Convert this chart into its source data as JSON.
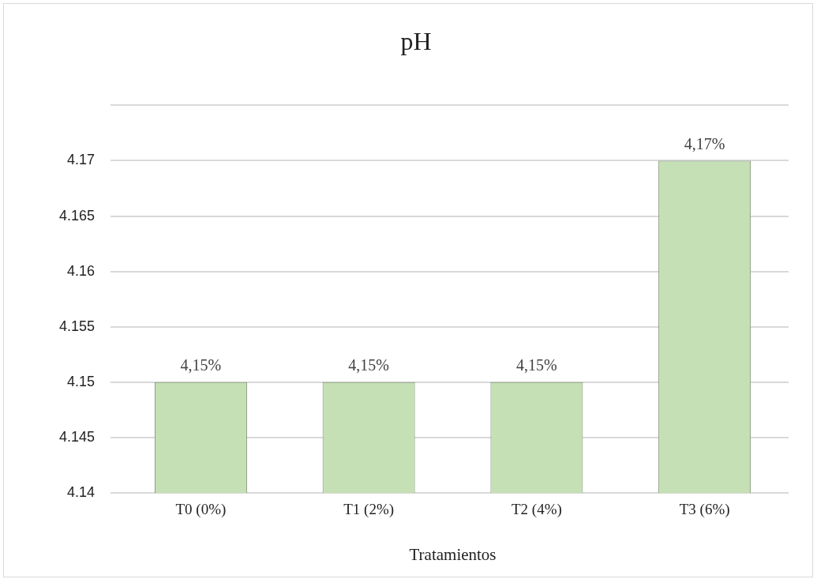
{
  "chart_data": {
    "type": "bar",
    "title": "pH",
    "xlabel": "Tratamientos",
    "categories": [
      "T0 (0%)",
      "T1 (2%)",
      "T2 (4%)",
      "T3 (6%)"
    ],
    "values": [
      4.15,
      4.15,
      4.15,
      4.17
    ],
    "value_labels": [
      "4,15%",
      "4,15%",
      "4,15%",
      "4,17%"
    ],
    "color": "#c5e0b4",
    "ylim": [
      4.14,
      4.175
    ],
    "yticks": [
      4.14,
      4.145,
      4.15,
      4.155,
      4.16,
      4.165,
      4.17,
      {
        "value": 4.175,
        "label": null
      }
    ],
    "grid": "y",
    "legend": false
  }
}
